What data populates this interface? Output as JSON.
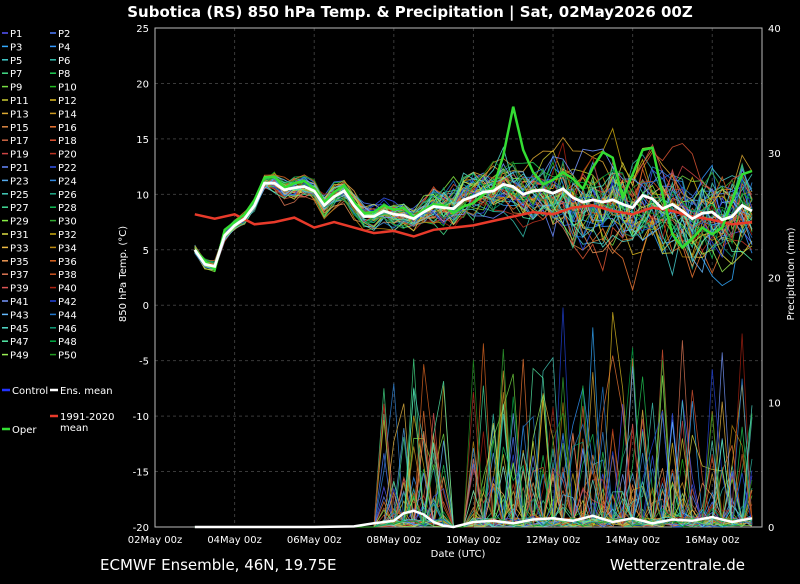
{
  "chart_data": {
    "type": "line",
    "title": "Subotica  (RS)  850 hPa Temp. & Precipitation | Sat, 02May2026 00Z",
    "footer_left": "ECMWF Ensemble, 46N, 19.75E",
    "footer_right": "Wetterzentrale.de",
    "xlabel": "Date (UTC)",
    "ylabel": "850 hPa Temp. (°C)",
    "y2label": "Precipitation (mm)",
    "x_ticks": [
      "02May 00z",
      "04May 00z",
      "06May 00z",
      "08May 00z",
      "10May 00z",
      "12May 00z",
      "14May 00z",
      "16May 00z"
    ],
    "x_range_days": [
      0,
      15.25
    ],
    "ylim": [
      -20,
      25
    ],
    "y_ticks": [
      25,
      20,
      15,
      10,
      5,
      0,
      -5,
      -10,
      -15,
      -20
    ],
    "y2lim": [
      0,
      40
    ],
    "y2_ticks": [
      40,
      30,
      20,
      10,
      0
    ],
    "grid": true,
    "legend_position": "left",
    "legend_members": [
      "P1",
      "P2",
      "P3",
      "P4",
      "P5",
      "P6",
      "P7",
      "P8",
      "P9",
      "P10",
      "P11",
      "P12",
      "P13",
      "P14",
      "P15",
      "P16",
      "P17",
      "P18",
      "P19",
      "P20",
      "P21",
      "P22",
      "P23",
      "P24",
      "P25",
      "P26",
      "P27",
      "P28",
      "P29",
      "P30",
      "P31",
      "P32",
      "P33",
      "P34",
      "P35",
      "P36",
      "P37",
      "P38",
      "P39",
      "P40",
      "P41",
      "P42",
      "P43",
      "P44",
      "P45",
      "P46",
      "P47",
      "P48",
      "P49",
      "P50"
    ],
    "legend_extra": [
      {
        "label": "Control",
        "color": "#2233ff"
      },
      {
        "label": "Ens. mean",
        "color": "#ffffff"
      },
      {
        "label": "1991-2020 mean",
        "color": "#e83a2a"
      },
      {
        "label": "Oper",
        "color": "#33dd33"
      }
    ],
    "ens_mean": {
      "x": [
        1,
        1.25,
        1.5,
        1.75,
        2,
        2.25,
        2.5,
        2.75,
        3,
        3.25,
        3.5,
        3.75,
        4,
        4.25,
        4.5,
        4.75,
        5,
        5.25,
        5.5,
        5.75,
        6,
        6.25,
        6.5,
        6.75,
        7,
        7.25,
        7.5,
        7.75,
        8,
        8.25,
        8.5,
        8.75,
        9,
        9.25,
        9.5,
        9.75,
        10,
        10.25,
        10.5,
        10.75,
        11,
        11.25,
        11.5,
        11.75,
        12,
        12.25,
        12.5,
        12.75,
        13,
        13.25,
        13.5,
        13.75,
        14,
        14.25,
        14.5,
        14.75,
        15
      ],
      "values": [
        5,
        3.7,
        3.5,
        6.3,
        7.2,
        7.8,
        9,
        11,
        11,
        10.4,
        10.6,
        10.7,
        10.3,
        9,
        9.8,
        10.3,
        9,
        8,
        8,
        8.5,
        8.2,
        8.1,
        7.8,
        8.4,
        8.9,
        8.8,
        8.7,
        9.5,
        9.8,
        10.2,
        10.3,
        10.9,
        10.7,
        10,
        10.3,
        10.4,
        10.1,
        10.5,
        9.7,
        9.3,
        9.5,
        9.3,
        9.5,
        9.1,
        8.8,
        9.9,
        9.6,
        8.7,
        9.1,
        8.5,
        7.8,
        8.3,
        8.4,
        7.7,
        8,
        9,
        8.5
      ]
    },
    "clim_mean": {
      "x": [
        1,
        1.5,
        2,
        2.5,
        3,
        3.5,
        4,
        4.5,
        5,
        5.5,
        6,
        6.5,
        7,
        7.5,
        8,
        8.5,
        9,
        9.5,
        10,
        10.5,
        11,
        11.5,
        12,
        12.5,
        13,
        13.5,
        14,
        14.5,
        15
      ],
      "values": [
        8.2,
        7.8,
        8.2,
        7.3,
        7.5,
        7.9,
        7,
        7.5,
        7,
        6.5,
        6.7,
        6.2,
        6.8,
        7,
        7.2,
        7.6,
        8,
        8.4,
        8.2,
        8.8,
        9,
        8.5,
        8.2,
        8.8,
        8.5,
        8,
        7.7,
        7.3,
        7.5
      ]
    },
    "oper": {
      "x": [
        1,
        1.25,
        1.5,
        1.75,
        2,
        2.25,
        2.5,
        2.75,
        3,
        3.25,
        3.5,
        3.75,
        4,
        4.25,
        4.5,
        4.75,
        5,
        5.25,
        5.5,
        5.75,
        6,
        6.25,
        6.5,
        6.75,
        7,
        7.25,
        7.5,
        7.75,
        8,
        8.25,
        8.5,
        8.75,
        9,
        9.25,
        9.5,
        9.75,
        10,
        10.25,
        10.5,
        10.75,
        11,
        11.25,
        11.5,
        11.75,
        12,
        12.25,
        12.5,
        12.75,
        13,
        13.25,
        13.5,
        13.75,
        14,
        14.25,
        14.5,
        14.75,
        15
      ],
      "values": [
        5,
        4,
        3.2,
        6.8,
        7.5,
        8.2,
        9.5,
        11.5,
        11.6,
        10.6,
        11,
        11.2,
        10.5,
        9.3,
        10.2,
        10.8,
        9.3,
        8.3,
        8.4,
        9,
        8.6,
        8.8,
        7.9,
        8.6,
        9.1,
        9,
        8.3,
        8.9,
        9.2,
        10,
        10.6,
        13.5,
        17.9,
        14,
        12,
        10.9,
        11.3,
        12,
        11.4,
        10.5,
        12.4,
        13.8,
        13.3,
        9.7,
        11.8,
        14,
        14.2,
        10,
        6.4,
        5.2,
        6,
        7,
        6.4,
        7,
        9.4,
        11.8,
        12.1
      ]
    },
    "ens_mean_precip": {
      "x": [
        1,
        2,
        3,
        4,
        5,
        5.5,
        6,
        6.25,
        6.5,
        6.75,
        7,
        7.25,
        7.5,
        8,
        8.5,
        9,
        9.5,
        10,
        10.5,
        11,
        11.5,
        12,
        12.5,
        13,
        13.5,
        14,
        14.5,
        15
      ],
      "values": [
        0,
        0,
        0,
        0,
        0.05,
        0.3,
        0.5,
        1.1,
        1.3,
        1,
        0.4,
        0.1,
        0,
        0.4,
        0.5,
        0.3,
        0.6,
        0.7,
        0.5,
        0.9,
        0.4,
        0.7,
        0.3,
        0.6,
        0.5,
        0.8,
        0.4,
        0.7
      ]
    }
  }
}
